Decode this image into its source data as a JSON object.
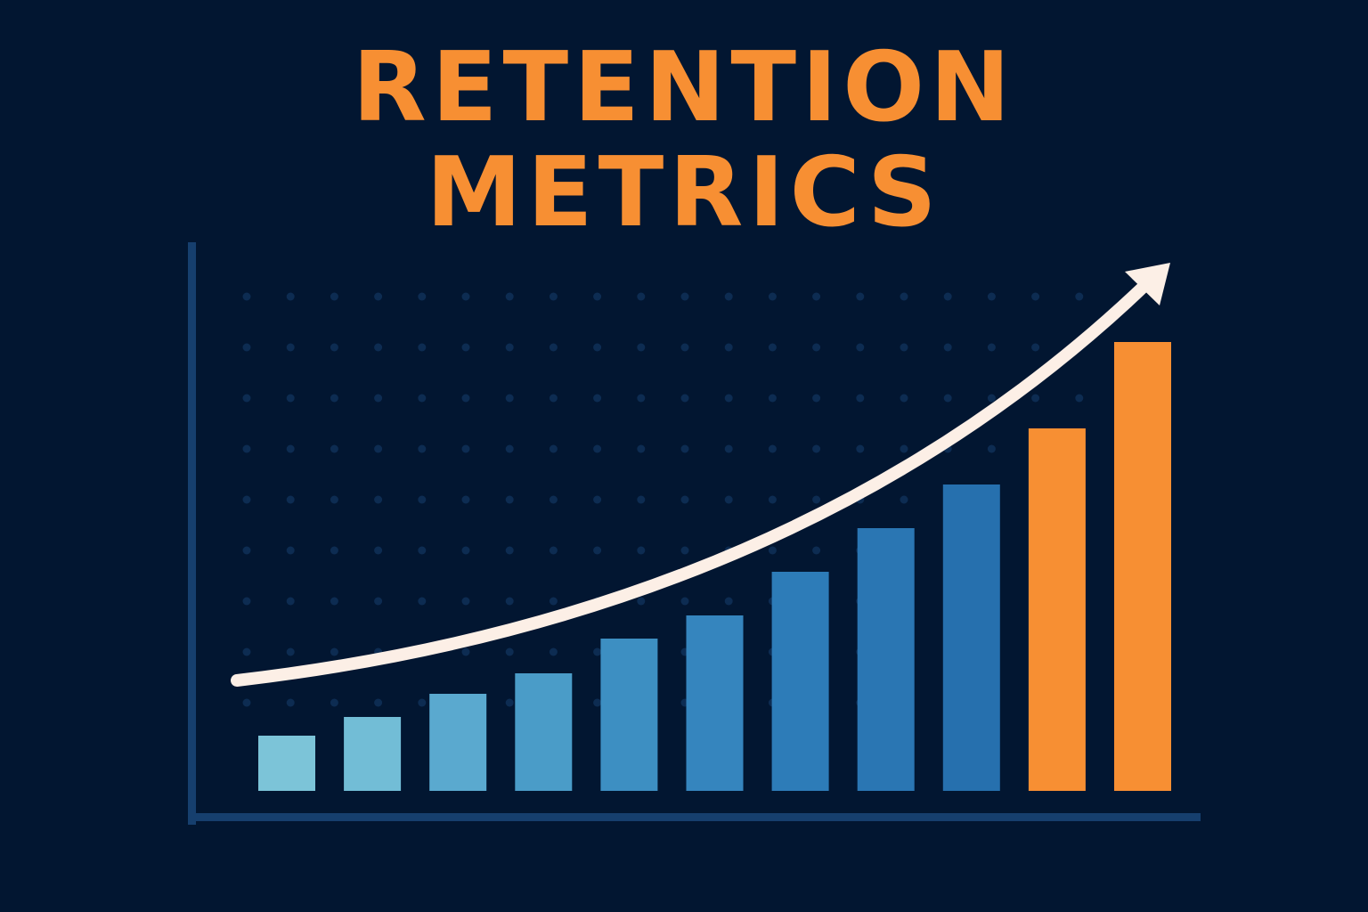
{
  "chart_data": {
    "type": "bar",
    "title": "RETENTION METRICS",
    "categories": [
      null,
      null,
      null,
      null,
      null,
      null,
      null,
      null,
      null,
      null,
      null
    ],
    "values": [
      62,
      83,
      109,
      132,
      171,
      197,
      246,
      295,
      344,
      407,
      504
    ],
    "colors": [
      "#7cc4d8",
      "#72bdd6",
      "#5aa9cf",
      "#4a9cc8",
      "#3d8fc2",
      "#3585be",
      "#2d7cb8",
      "#2a76b3",
      "#2670ae",
      "#f78f33",
      "#f78f33"
    ],
    "ylim": [
      0,
      616
    ]
  }
}
